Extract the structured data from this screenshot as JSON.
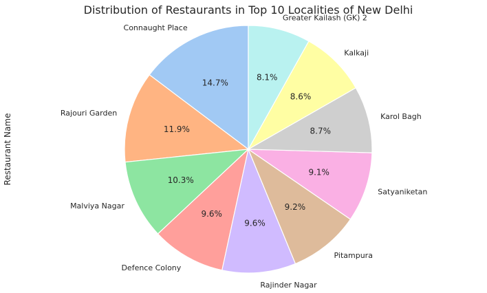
{
  "chart_data": {
    "type": "pie",
    "title": "Distribution of Restaurants in Top 10 Localities of New Delhi",
    "ylabel": "Restaurant Name",
    "start_angle_deg": 90,
    "direction": "counterclockwise",
    "slices": [
      {
        "label": "Connaught Place",
        "percent": 14.7,
        "pct_text": "14.7%",
        "color": "#a1c9f4"
      },
      {
        "label": "Rajouri Garden",
        "percent": 11.9,
        "pct_text": "11.9%",
        "color": "#ffb482"
      },
      {
        "label": "Malviya Nagar",
        "percent": 10.3,
        "pct_text": "10.3%",
        "color": "#8de5a1"
      },
      {
        "label": "Defence Colony",
        "percent": 9.6,
        "pct_text": "9.6%",
        "color": "#ff9f9b"
      },
      {
        "label": "Rajinder Nagar",
        "percent": 9.6,
        "pct_text": "9.6%",
        "color": "#d0bbff"
      },
      {
        "label": "Pitampura",
        "percent": 9.2,
        "pct_text": "9.2%",
        "color": "#debb9b"
      },
      {
        "label": "Satyaniketan",
        "percent": 9.1,
        "pct_text": "9.1%",
        "color": "#fab0e4"
      },
      {
        "label": "Karol Bagh",
        "percent": 8.7,
        "pct_text": "8.7%",
        "color": "#cfcfcf"
      },
      {
        "label": "Kalkaji",
        "percent": 8.6,
        "pct_text": "8.6%",
        "color": "#fffea3"
      },
      {
        "label": "Greater Kailash (GK) 2",
        "percent": 8.1,
        "pct_text": "8.1%",
        "color": "#b9f2f0"
      }
    ]
  }
}
